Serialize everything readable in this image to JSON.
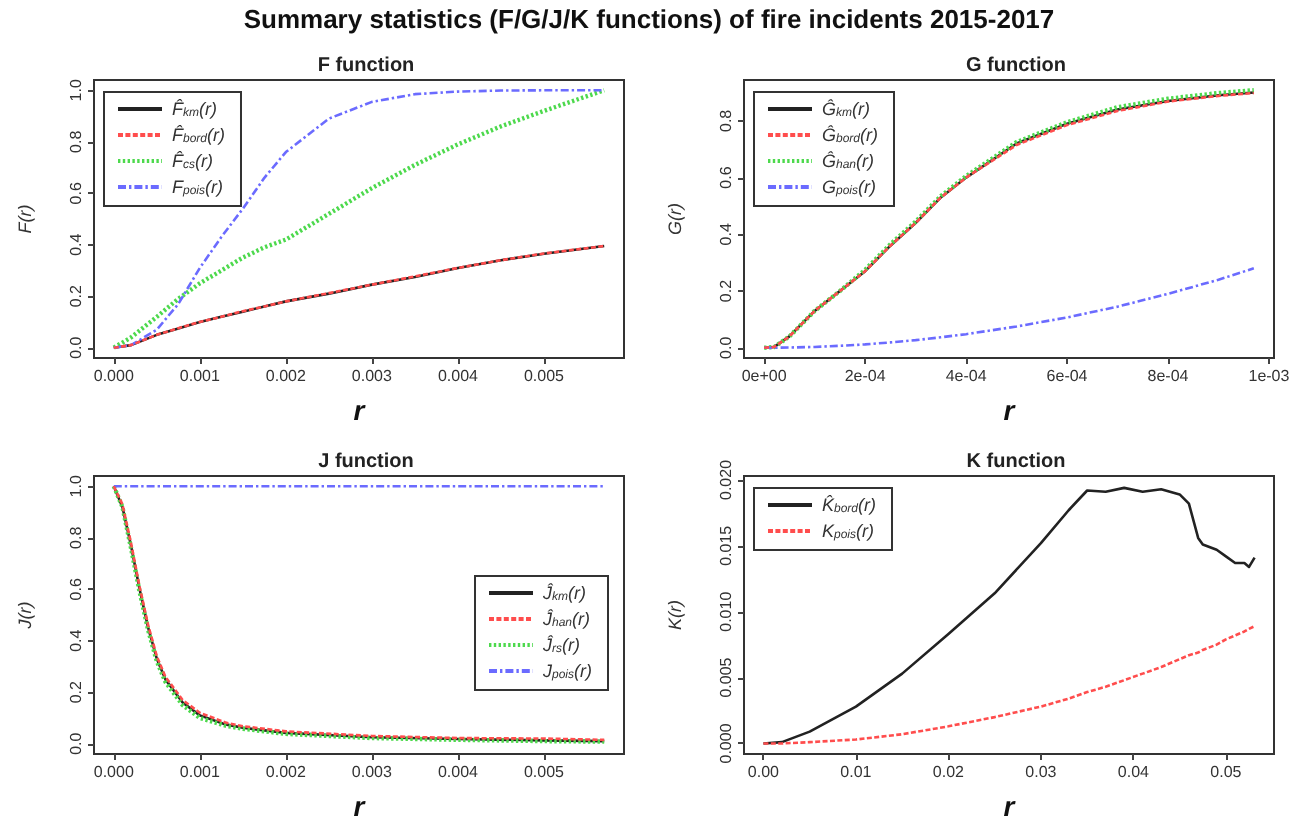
{
  "chart_data": [
    {
      "type": "other",
      "title": "Summary statistics (F/G/J/K functions) of fire incidents 2015-2017"
    },
    {
      "type": "line",
      "title": "F function",
      "xlabel": "r",
      "ylabel": "F(r)",
      "legend": "top left",
      "marker": "none",
      "grid": false,
      "xlim": [
        -0.00023,
        0.00593
      ],
      "xticks": [
        {
          "value": 0,
          "label": "0.000"
        },
        0.001,
        0.002,
        0.003,
        0.004,
        0.005
      ],
      "ylim": [
        -0.04,
        1.04
      ],
      "yticks": [
        {
          "value": 0,
          "label": "0.0"
        },
        0.2,
        0.4,
        0.6,
        0.8,
        {
          "value": 1,
          "label": "1.0"
        }
      ],
      "x": [
        0,
        0.0002,
        0.0005,
        0.00075,
        0.001,
        0.00125,
        0.0015,
        0.00175,
        0.002,
        0.0025,
        0.003,
        0.0035,
        0.004,
        0.0045,
        0.005,
        0.0057
      ],
      "series": [
        {
          "name": "F̂$_{km}$(r)",
          "color": "#222222",
          "line_style": "solid",
          "values": [
            0,
            0.01,
            0.05,
            0.075,
            0.1,
            0.12,
            0.14,
            0.16,
            0.18,
            0.21,
            0.245,
            0.275,
            0.31,
            0.34,
            0.365,
            0.395
          ]
        },
        {
          "name": "F̂$_{bord}$(r)",
          "color": "#ff4d4d",
          "line_style": "dashed",
          "values": [
            0,
            0.01,
            0.05,
            0.076,
            0.1,
            0.12,
            0.142,
            0.16,
            0.18,
            0.212,
            0.245,
            0.277,
            0.31,
            0.34,
            0.366,
            0.395
          ]
        },
        {
          "name": "F̂$_{cs}$(r)",
          "color": "#4dd94d",
          "line_style": "dotted",
          "values": [
            0,
            0.04,
            0.12,
            0.19,
            0.25,
            0.3,
            0.35,
            0.39,
            0.42,
            0.52,
            0.62,
            0.71,
            0.79,
            0.86,
            0.92,
            1.0
          ]
        },
        {
          "name": "F$_{pois}$(r)",
          "color": "#6b6bff",
          "line_style": "dashdot",
          "values": [
            0,
            0.01,
            0.07,
            0.17,
            0.31,
            0.43,
            0.54,
            0.66,
            0.76,
            0.89,
            0.955,
            0.985,
            0.995,
            0.999,
            1.0,
            1.0
          ]
        }
      ]
    },
    {
      "type": "line",
      "title": "G function",
      "xlabel": "r",
      "ylabel": "G(r)",
      "legend": "top left",
      "marker": "none",
      "grid": false,
      "xlim": [
        -4e-05,
        0.00101
      ],
      "xticks": [
        {
          "value": 0,
          "label": "0e+00"
        },
        {
          "value": 0.0002,
          "label": "2e-04"
        },
        {
          "value": 0.0004,
          "label": "4e-04"
        },
        {
          "value": 0.0006,
          "label": "6e-04"
        },
        {
          "value": 0.0008,
          "label": "8e-04"
        },
        {
          "value": 0.001,
          "label": "1e-03"
        }
      ],
      "ylim": [
        -0.036,
        0.944
      ],
      "yticks": [
        {
          "value": 0,
          "label": "0.0"
        },
        0.2,
        0.4,
        0.6,
        0.8
      ],
      "x": [
        0,
        2e-05,
        5e-05,
        0.0001,
        0.00015,
        0.0002,
        0.00025,
        0.0003,
        0.00035,
        0.0004,
        0.0005,
        0.0006,
        0.0007,
        0.0008,
        0.0009,
        0.00097
      ],
      "series": [
        {
          "name": "Ĝ$_{km}$(r)",
          "color": "#222222",
          "line_style": "solid",
          "values": [
            0,
            0.003,
            0.04,
            0.13,
            0.2,
            0.27,
            0.36,
            0.44,
            0.53,
            0.6,
            0.72,
            0.79,
            0.84,
            0.87,
            0.89,
            0.9
          ]
        },
        {
          "name": "Ĝ$_{bord}$(r)",
          "color": "#ff4d4d",
          "line_style": "dashed",
          "values": [
            0,
            0.003,
            0.04,
            0.13,
            0.2,
            0.27,
            0.36,
            0.44,
            0.53,
            0.6,
            0.715,
            0.785,
            0.835,
            0.868,
            0.888,
            0.898
          ]
        },
        {
          "name": "Ĝ$_{han}$(r)",
          "color": "#4dd94d",
          "line_style": "dotted",
          "values": [
            0,
            0.003,
            0.04,
            0.13,
            0.2,
            0.275,
            0.365,
            0.445,
            0.535,
            0.605,
            0.725,
            0.795,
            0.848,
            0.878,
            0.898,
            0.908
          ]
        },
        {
          "name": "G$_{pois}$(r)",
          "color": "#6b6bff",
          "line_style": "dashdot",
          "values": [
            0,
            0,
            0.001,
            0.003,
            0.007,
            0.012,
            0.019,
            0.027,
            0.037,
            0.048,
            0.075,
            0.107,
            0.145,
            0.19,
            0.24,
            0.28
          ]
        }
      ]
    },
    {
      "type": "line",
      "title": "J function",
      "xlabel": "r",
      "ylabel": "J(r)",
      "legend": "right",
      "marker": "none",
      "grid": false,
      "xlim": [
        -0.00023,
        0.00593
      ],
      "xticks": [
        {
          "value": 0,
          "label": "0.000"
        },
        0.001,
        0.002,
        0.003,
        0.004,
        0.005
      ],
      "ylim": [
        -0.04,
        1.04
      ],
      "yticks": [
        {
          "value": 0,
          "label": "0.0"
        },
        0.2,
        0.4,
        0.6,
        0.8,
        {
          "value": 1,
          "label": "1.0"
        }
      ],
      "x": [
        0,
        0.0001,
        0.0002,
        0.0003,
        0.0004,
        0.0005,
        0.0006,
        0.0008,
        0.001,
        0.0013,
        0.0015,
        0.002,
        0.003,
        0.004,
        0.005,
        0.0057
      ],
      "series": [
        {
          "name": "Ĵ$_{km}$(r)",
          "color": "#222222",
          "line_style": "solid",
          "values": [
            1,
            0.92,
            0.77,
            0.6,
            0.45,
            0.33,
            0.25,
            0.16,
            0.11,
            0.075,
            0.062,
            0.042,
            0.025,
            0.018,
            0.013,
            0.01
          ]
        },
        {
          "name": "Ĵ$_{han}$(r)",
          "color": "#ff4d4d",
          "line_style": "dashed",
          "values": [
            1,
            0.93,
            0.78,
            0.61,
            0.46,
            0.34,
            0.26,
            0.17,
            0.12,
            0.082,
            0.068,
            0.048,
            0.03,
            0.022,
            0.02,
            0.015
          ]
        },
        {
          "name": "Ĵ$_{rs}$(r)",
          "color": "#4dd94d",
          "line_style": "dotted",
          "values": [
            1,
            0.92,
            0.76,
            0.59,
            0.44,
            0.32,
            0.24,
            0.15,
            0.1,
            0.07,
            0.058,
            0.038,
            0.022,
            0.015,
            0.01,
            0.008
          ]
        },
        {
          "name": "J$_{pois}$(r)",
          "color": "#6b6bff",
          "line_style": "dashdot",
          "values": [
            1,
            1,
            1,
            1,
            1,
            1,
            1,
            1,
            1,
            1,
            1,
            1,
            1,
            1,
            1,
            1
          ]
        }
      ]
    },
    {
      "type": "line",
      "title": "K function",
      "xlabel": "r",
      "ylabel": "K(r)",
      "legend": "top left",
      "marker": "none",
      "grid": false,
      "xlim": [
        -0.0021,
        0.0552
      ],
      "xticks": [
        {
          "value": 0,
          "label": "0.00"
        },
        0.01,
        0.02,
        0.03,
        0.04,
        0.05
      ],
      "ylim": [
        -0.0008,
        0.0203
      ],
      "yticks": [
        {
          "value": 0,
          "label": "0.000"
        },
        0.005,
        {
          "value": 0.01,
          "label": "0.010"
        },
        0.015,
        {
          "value": 0.02,
          "label": "0.020"
        }
      ],
      "x": [
        0,
        0.002,
        0.005,
        0.01,
        0.015,
        0.02,
        0.025,
        0.03,
        0.033,
        0.035,
        0.037,
        0.039,
        0.041,
        0.043,
        0.045,
        0.046,
        0.047,
        0.0475,
        0.049,
        0.05,
        0.051,
        0.052,
        0.0525,
        0.0531
      ],
      "series": [
        {
          "name": "K̂$_{bord}$(r)",
          "color": "#222222",
          "line_style": "solid",
          "values": [
            0,
            0.0001,
            0.0009,
            0.0028,
            0.0053,
            0.0083,
            0.0114,
            0.0152,
            0.0177,
            0.0192,
            0.0191,
            0.0194,
            0.0191,
            0.0193,
            0.0189,
            0.0182,
            0.0156,
            0.0151,
            0.0147,
            0.0142,
            0.0137,
            0.0137,
            0.0134,
            0.0141
          ]
        },
        {
          "name": "K$_{pois}$(r)",
          "color": "#ff4d4d",
          "line_style": "dashed",
          "values": [
            0,
            0,
            0.0001,
            0.0003,
            0.0007,
            0.0013,
            0.002,
            0.0028,
            0.0034,
            0.0039,
            0.0043,
            0.0048,
            0.0053,
            0.0058,
            0.0064,
            0.0067,
            0.0069,
            0.0071,
            0.0075,
            0.0079,
            0.0082,
            0.0085,
            0.0087,
            0.0089
          ]
        }
      ]
    }
  ]
}
